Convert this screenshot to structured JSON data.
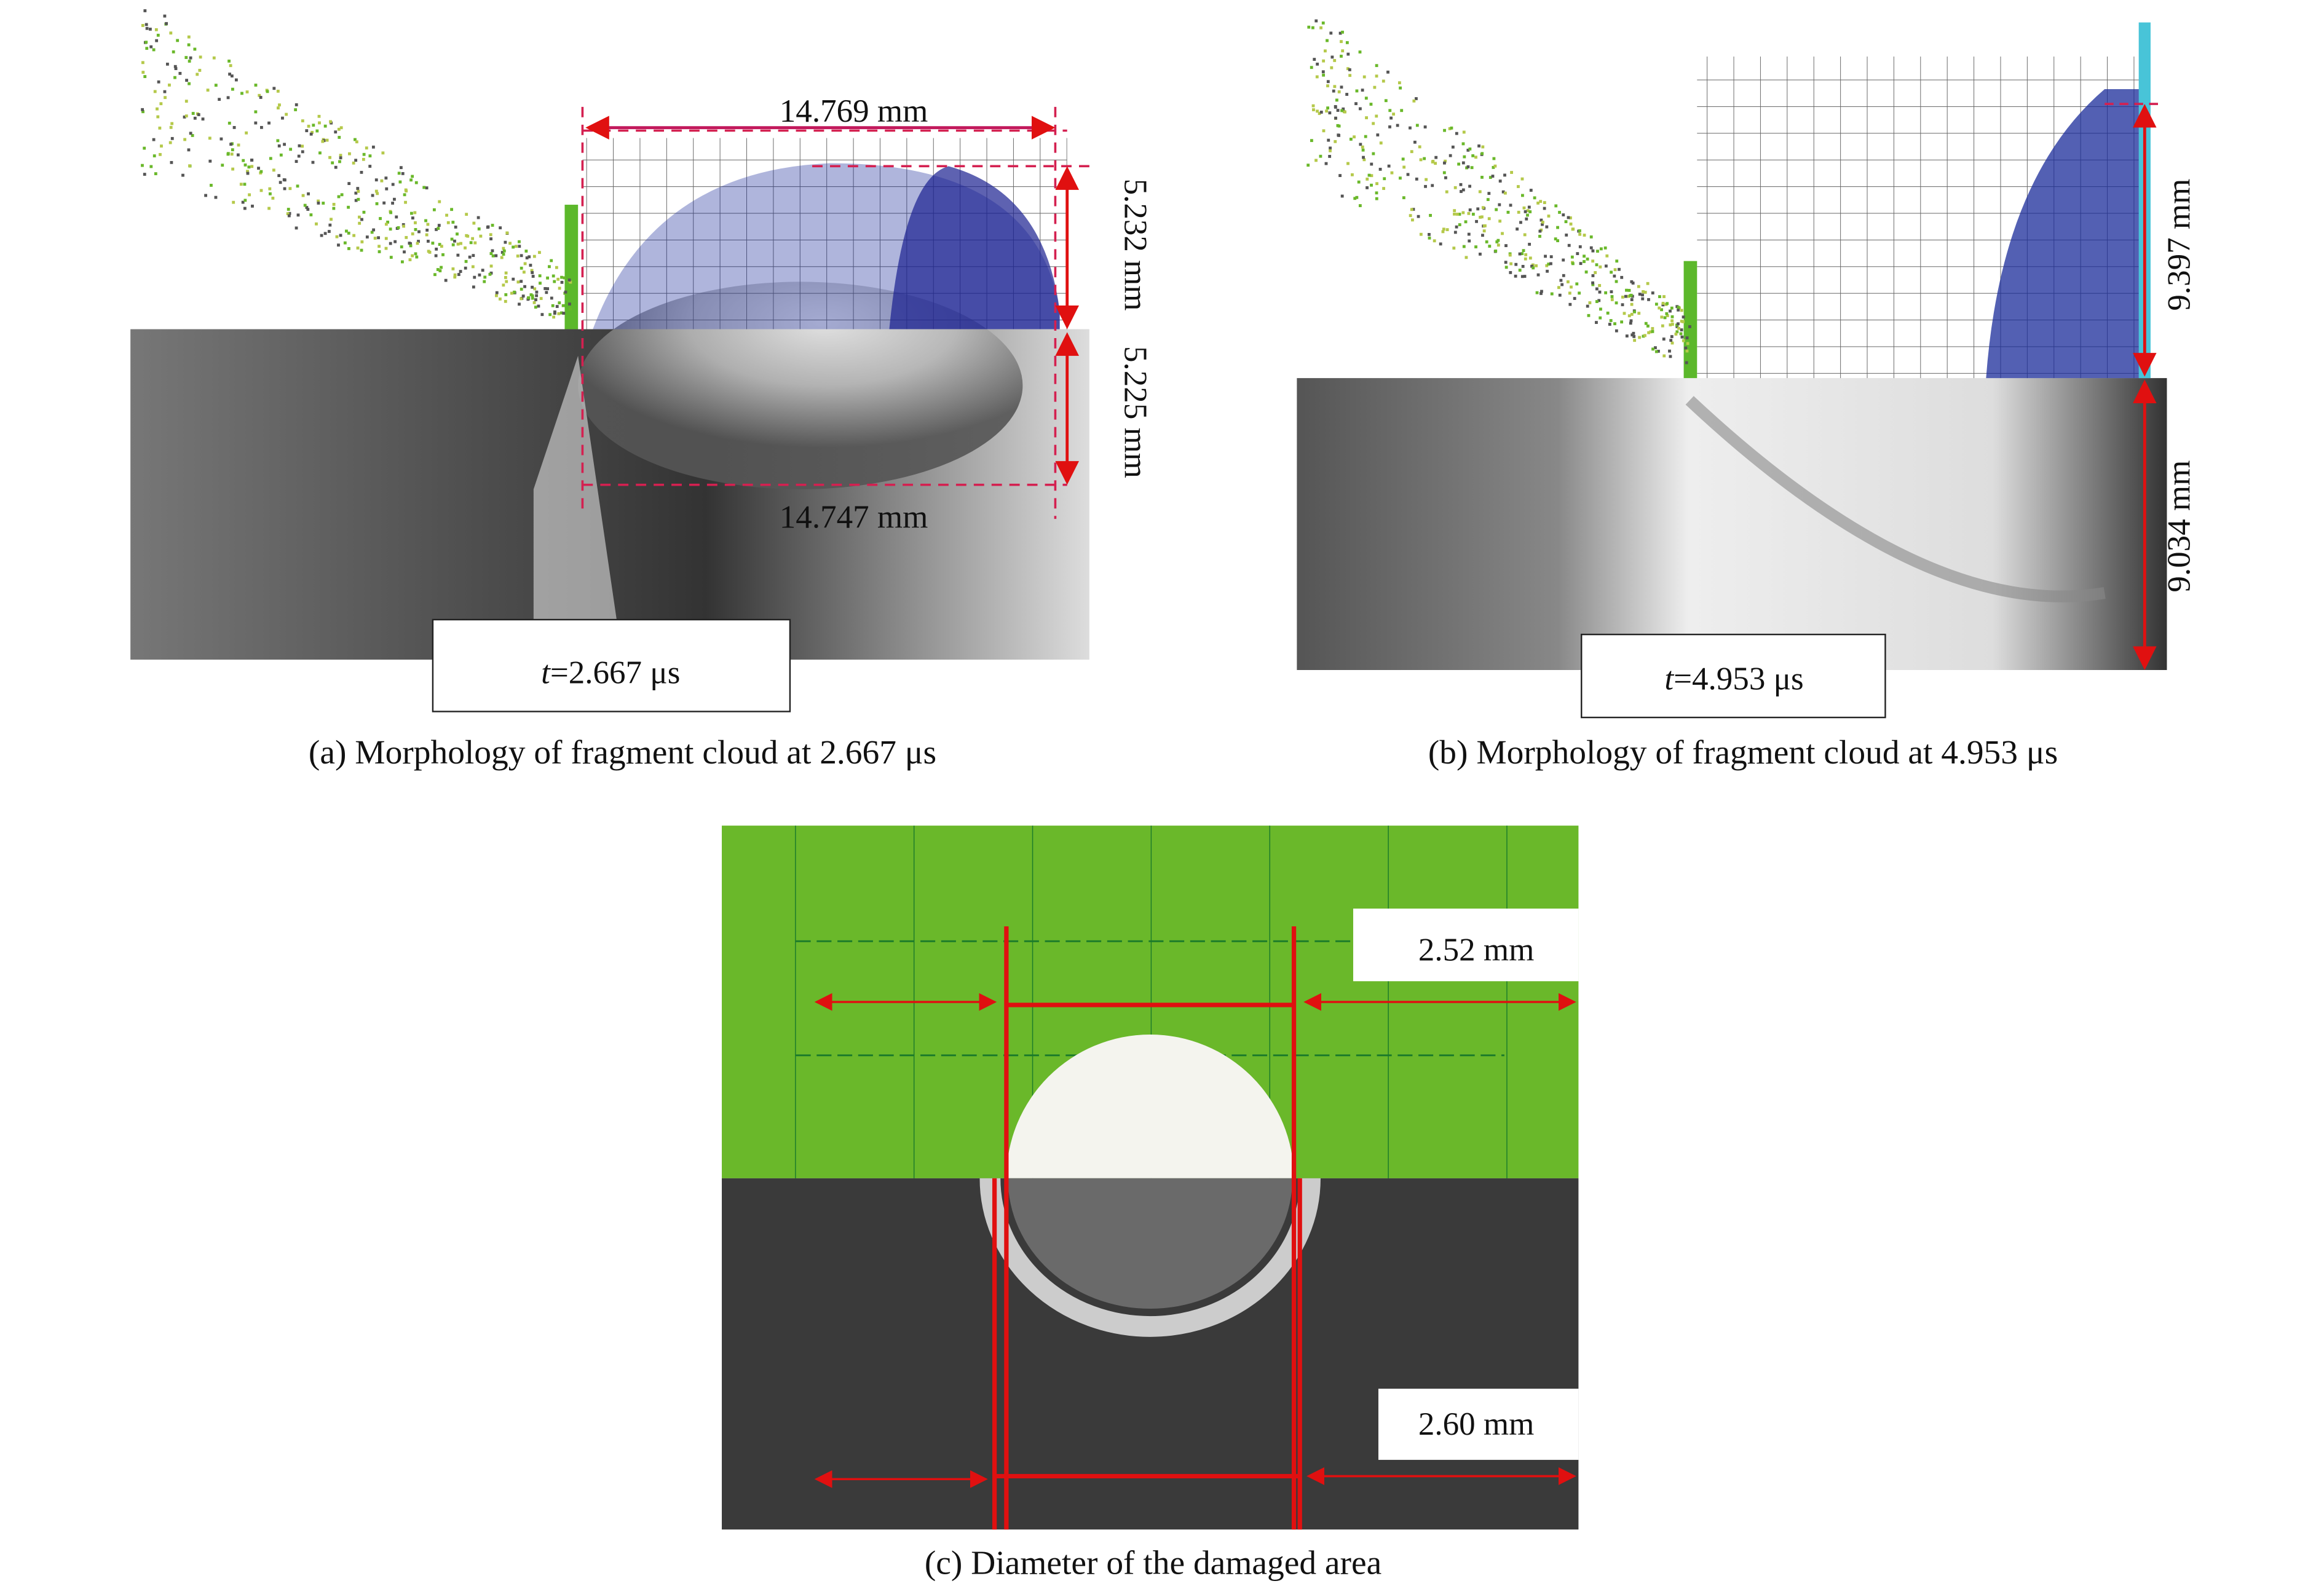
{
  "panels": [
    {
      "dimensions": {
        "top": "14.769 mm",
        "top_height": "5.232 mm",
        "bottom_height": "5.225 mm",
        "bottom": "14.747 mm"
      },
      "time": {
        "variable": "t",
        "value": "=2.667 μs"
      },
      "caption": "(a) Morphology of fragment cloud at 2.667 μs"
    },
    {
      "dimensions": {
        "top_height": "9.397 mm",
        "bottom_height": "9.034 mm"
      },
      "time": {
        "variable": "t",
        "value": "=4.953 μs"
      },
      "caption": "(b) Morphology of fragment cloud at 4.953 μs"
    },
    {
      "dimensions": {
        "top": "2.52 mm",
        "bottom": "2.60 mm"
      },
      "caption": "(c) Diameter of the damaged area"
    }
  ]
}
